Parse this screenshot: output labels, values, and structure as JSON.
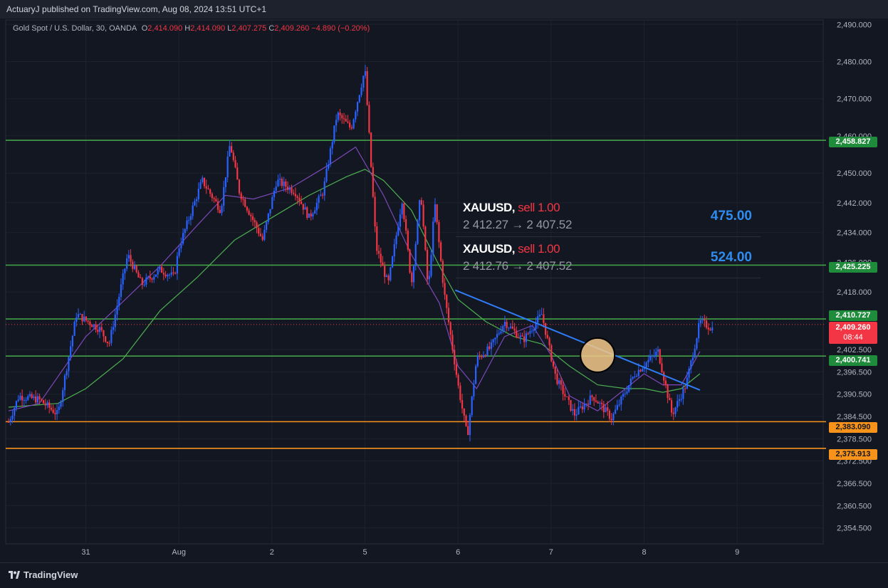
{
  "header": {
    "publisher_text": "ActuaryJ published on TradingView.com, Aug 08, 2024 13:51 UTC+1"
  },
  "legend": {
    "symbol": "Gold Spot / U.S. Dollar, 30, OANDA",
    "o_label": "O",
    "o": "2,414.090",
    "h_label": "H",
    "h": "2,414.090",
    "l_label": "L",
    "l": "2,407.275",
    "c_label": "C",
    "c": "2,409.260",
    "change": "−4.890 (−0.20%)"
  },
  "trades": [
    {
      "symbol": "XAUUSD,",
      "side": "sell 1.00",
      "prices": "2 412.27 → 2 407.52",
      "pnl": "475.00"
    },
    {
      "symbol": "XAUUSD,",
      "side": "sell 1.00",
      "prices": "2 412.76 → 2 407.52",
      "pnl": "524.00"
    }
  ],
  "price_labels": {
    "l2458": "2,458.827",
    "l2425": "2,425.225",
    "l2410": "2,410.727",
    "current_price": "2,409.260",
    "countdown": "08:44",
    "l2400": "2,400.741",
    "l2383": "2,383.090",
    "l2375": "2,375.913"
  },
  "footer": {
    "brand": "TradingView"
  },
  "colors": {
    "up": "#2962ff",
    "down": "#f23645",
    "level_green": "#43a047",
    "level_orange": "#f7931a",
    "trendline": "#2e7cf6",
    "ma_fast": "#7b48b8",
    "ma_slow": "#4caf50",
    "background": "#131722"
  },
  "chart_data": {
    "type": "candlestick",
    "symbol": "Gold Spot / U.S. Dollar",
    "timeframe": "30",
    "y_axis": {
      "range": [
        2350.5,
        2493.0
      ],
      "ticks": [
        "2,490.000",
        "2,480.000",
        "2,470.000",
        "2,460.000",
        "2,450.000",
        "2,442.000",
        "2,434.000",
        "2,426.000",
        "2,418.000",
        "2,402.500",
        "2,396.500",
        "2,390.500",
        "2,384.500",
        "2,378.500",
        "2,372.500",
        "2,366.500",
        "2,360.500",
        "2,354.500"
      ],
      "tick_values": [
        2490,
        2480,
        2470,
        2460,
        2450,
        2442,
        2434,
        2426,
        2418,
        2402.5,
        2396.5,
        2390.5,
        2384.5,
        2378.5,
        2372.5,
        2366.5,
        2360.5,
        2354.5
      ]
    },
    "x_axis": {
      "ticks": [
        "31",
        "Aug",
        "2",
        "5",
        "6",
        "7",
        "8",
        "9"
      ],
      "tick_positions": [
        0.0,
        1.0,
        2.0,
        3.0,
        4.0,
        5.0,
        6.0,
        7.0
      ]
    },
    "horizontal_levels": [
      {
        "value": 2458.827,
        "color": "green"
      },
      {
        "value": 2425.225,
        "color": "green"
      },
      {
        "value": 2410.727,
        "color": "green"
      },
      {
        "value": 2400.741,
        "color": "green"
      },
      {
        "value": 2383.09,
        "color": "orange"
      },
      {
        "value": 2375.913,
        "color": "orange"
      }
    ],
    "current_price": 2409.26,
    "trendline": {
      "from": {
        "day": 3.97,
        "price": 2418.5
      },
      "to": {
        "day": 6.6,
        "price": 2391.6
      }
    },
    "highlight_circle": {
      "day": 5.5,
      "price": 2401.0
    },
    "path": [
      [
        -0.83,
        2383
      ],
      [
        -0.72,
        2390
      ],
      [
        -0.5,
        2389
      ],
      [
        -0.3,
        2385
      ],
      [
        -0.1,
        2412
      ],
      [
        0.15,
        2408
      ],
      [
        0.25,
        2404
      ],
      [
        0.45,
        2428
      ],
      [
        0.6,
        2420
      ],
      [
        0.8,
        2424
      ],
      [
        0.95,
        2422
      ],
      [
        1.0,
        2430
      ],
      [
        1.25,
        2448
      ],
      [
        1.45,
        2440
      ],
      [
        1.55,
        2458
      ],
      [
        1.65,
        2445
      ],
      [
        1.9,
        2432
      ],
      [
        2.05,
        2448
      ],
      [
        2.25,
        2445
      ],
      [
        2.4,
        2438
      ],
      [
        2.55,
        2445
      ],
      [
        2.7,
        2466
      ],
      [
        2.85,
        2462
      ],
      [
        3.0,
        2478
      ],
      [
        3.12,
        2430
      ],
      [
        3.25,
        2420
      ],
      [
        3.4,
        2443
      ],
      [
        3.5,
        2420
      ],
      [
        3.6,
        2445
      ],
      [
        3.68,
        2418
      ],
      [
        3.75,
        2442
      ],
      [
        3.85,
        2418
      ],
      [
        4.0,
        2393
      ],
      [
        4.1,
        2379
      ],
      [
        4.2,
        2400
      ],
      [
        4.35,
        2403
      ],
      [
        4.5,
        2410
      ],
      [
        4.7,
        2405
      ],
      [
        4.9,
        2412
      ],
      [
        5.05,
        2395
      ],
      [
        5.25,
        2385
      ],
      [
        5.45,
        2390
      ],
      [
        5.65,
        2384
      ],
      [
        5.9,
        2396
      ],
      [
        6.15,
        2402
      ],
      [
        6.3,
        2385
      ],
      [
        6.45,
        2393
      ],
      [
        6.6,
        2410
      ],
      [
        6.75,
        2408
      ]
    ],
    "ma_fast_path": [
      [
        -0.83,
        2386
      ],
      [
        -0.5,
        2388
      ],
      [
        0.0,
        2406
      ],
      [
        0.3,
        2413
      ],
      [
        0.8,
        2425
      ],
      [
        1.2,
        2436
      ],
      [
        1.5,
        2444
      ],
      [
        1.8,
        2443
      ],
      [
        2.2,
        2446
      ],
      [
        2.6,
        2452
      ],
      [
        2.9,
        2457
      ],
      [
        3.2,
        2444
      ],
      [
        3.5,
        2428
      ],
      [
        3.8,
        2415
      ],
      [
        4.0,
        2398
      ],
      [
        4.2,
        2392
      ],
      [
        4.5,
        2406
      ],
      [
        4.8,
        2409
      ],
      [
        5.0,
        2401
      ],
      [
        5.2,
        2390
      ],
      [
        5.5,
        2386
      ],
      [
        5.8,
        2392
      ],
      [
        6.0,
        2396
      ],
      [
        6.2,
        2393
      ],
      [
        6.4,
        2393
      ],
      [
        6.6,
        2402
      ]
    ],
    "ma_slow_path": [
      [
        -0.83,
        2387
      ],
      [
        -0.3,
        2388
      ],
      [
        0.0,
        2392
      ],
      [
        0.4,
        2400
      ],
      [
        0.8,
        2413
      ],
      [
        1.2,
        2422
      ],
      [
        1.6,
        2432
      ],
      [
        2.0,
        2438
      ],
      [
        2.4,
        2444
      ],
      [
        2.8,
        2449
      ],
      [
        3.0,
        2451
      ],
      [
        3.2,
        2448
      ],
      [
        3.5,
        2440
      ],
      [
        3.8,
        2425
      ],
      [
        4.0,
        2416
      ],
      [
        4.3,
        2410
      ],
      [
        4.6,
        2406
      ],
      [
        4.9,
        2404
      ],
      [
        5.2,
        2398
      ],
      [
        5.5,
        2393
      ],
      [
        5.8,
        2392
      ],
      [
        6.0,
        2392
      ],
      [
        6.2,
        2391
      ],
      [
        6.4,
        2392
      ],
      [
        6.6,
        2396
      ]
    ]
  }
}
